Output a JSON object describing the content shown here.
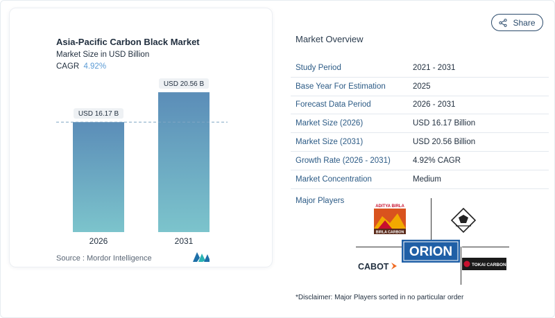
{
  "chart_card": {
    "title": "Asia-Pacific Carbon Black Market",
    "subtitle": "Market Size in USD Billion",
    "cagr_label": "CAGR",
    "cagr_value": "4.92%",
    "source": "Source :  Mordor Intelligence"
  },
  "chart_data": {
    "type": "bar",
    "title": "Asia-Pacific Carbon Black Market",
    "subtitle": "Market Size in USD Billion",
    "categories": [
      "2026",
      "2031"
    ],
    "values": [
      16.17,
      20.56
    ],
    "data_labels": [
      "USD 16.17 B",
      "USD 20.56 B"
    ],
    "ylim": [
      0,
      22
    ],
    "grid": false,
    "reference_line": 16.17,
    "bar_colors": [
      "#5b8db8",
      "#7cc4cc"
    ]
  },
  "header": {
    "share_label": "Share"
  },
  "overview": {
    "title": "Market Overview",
    "rows": [
      {
        "key": "Study Period",
        "value": "2021 - 2031"
      },
      {
        "key": "Base Year For Estimation",
        "value": "2025"
      },
      {
        "key": "Forecast Data Period",
        "value": "2026 - 2031"
      },
      {
        "key": "Market Size (2026)",
        "value": "USD 16.17 Billion"
      },
      {
        "key": "Market Size (2031)",
        "value": "USD 20.56 Billion"
      },
      {
        "key": "Growth Rate (2026 - 2031)",
        "value": "4.92% CAGR"
      },
      {
        "key": "Market Concentration",
        "value": "Medium"
      }
    ]
  },
  "players": {
    "title": "Major Players",
    "aditya_top": "ADITYA BIRLA",
    "aditya_bottom": "BIRLA CARBON",
    "orion": "ORION",
    "cabot": "CABOT",
    "tokai": "TOKAI CARBON"
  },
  "disclaimer": "*Disclaimer: Major Players sorted in no particular order"
}
